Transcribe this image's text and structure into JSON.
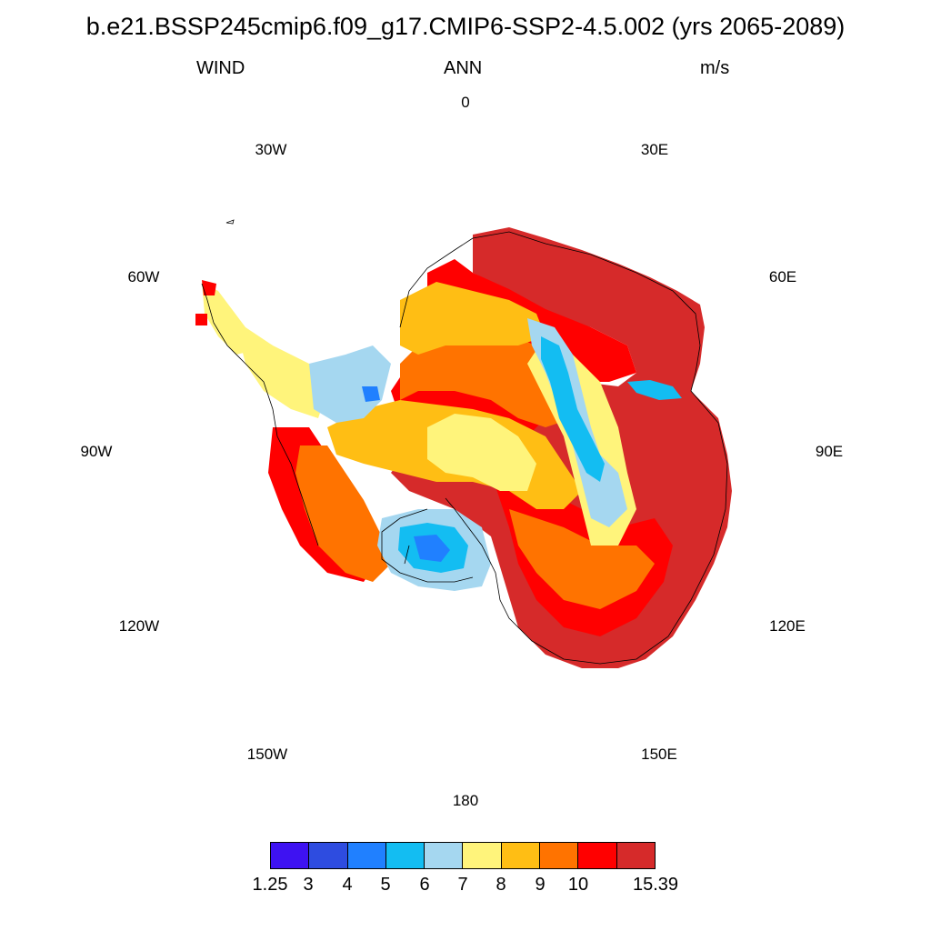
{
  "title": "b.e21.BSSP245cmip6.f09_g17.CMIP6-SSP2-4.5.002 (yrs 2065-2089)",
  "left_label": "WIND",
  "center_label": "ANN",
  "right_label": "m/s",
  "longitude_labels": [
    "0",
    "30E",
    "60E",
    "90E",
    "120E",
    "150E",
    "180",
    "150W",
    "120W",
    "90W",
    "60W",
    "30W"
  ],
  "colorbar": {
    "colors": [
      "#3e12f2",
      "#2e4ce0",
      "#2080ff",
      "#13bdf2",
      "#a5d7f0",
      "#fff47b",
      "#ffbe14",
      "#ff7300",
      "#ff0000",
      "#d62a2a"
    ],
    "labels": [
      "1.25",
      "3",
      "4",
      "5",
      "6",
      "7",
      "8",
      "9",
      "10",
      "15.39"
    ]
  }
}
